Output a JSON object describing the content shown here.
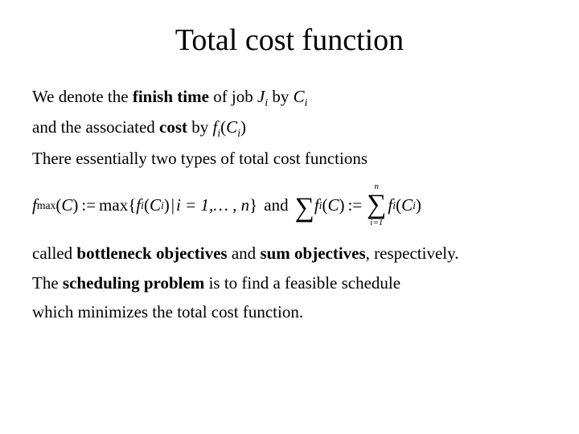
{
  "title": "Total cost function",
  "line1_a": "We denote the ",
  "line1_bold": "finish time",
  "line1_b": " of job ",
  "job_sym": "J",
  "job_sub": "i",
  "line1_c": " by ",
  "C_sym": "C",
  "C_sub": "i",
  "line2_a": "and the associated ",
  "line2_bold": "cost",
  "line2_b": " by ",
  "f_sym": "f",
  "f_sub": "i",
  "lp": "(",
  "rp": ")",
  "line3": "There essentially two types of total cost functions",
  "fmax_sub": "max",
  "assign": ":=",
  "max_text": "max",
  "set_open": "{",
  "set_close": "}",
  "bar": "|",
  "set_body": " i = 1,… , n",
  "and_text": " and ",
  "sigma": "∑",
  "sum_upper": "n",
  "sum_lower": "i=1",
  "line5_a": "called ",
  "line5_bold1": "bottleneck objectives",
  "line5_b": " and ",
  "line5_bold2": "sum objectives",
  "line5_c": ", respectively.",
  "line6_a": "The ",
  "line6_bold": "scheduling problem",
  "line6_b": " is to find a feasible schedule",
  "line7": "which minimizes the total cost function."
}
